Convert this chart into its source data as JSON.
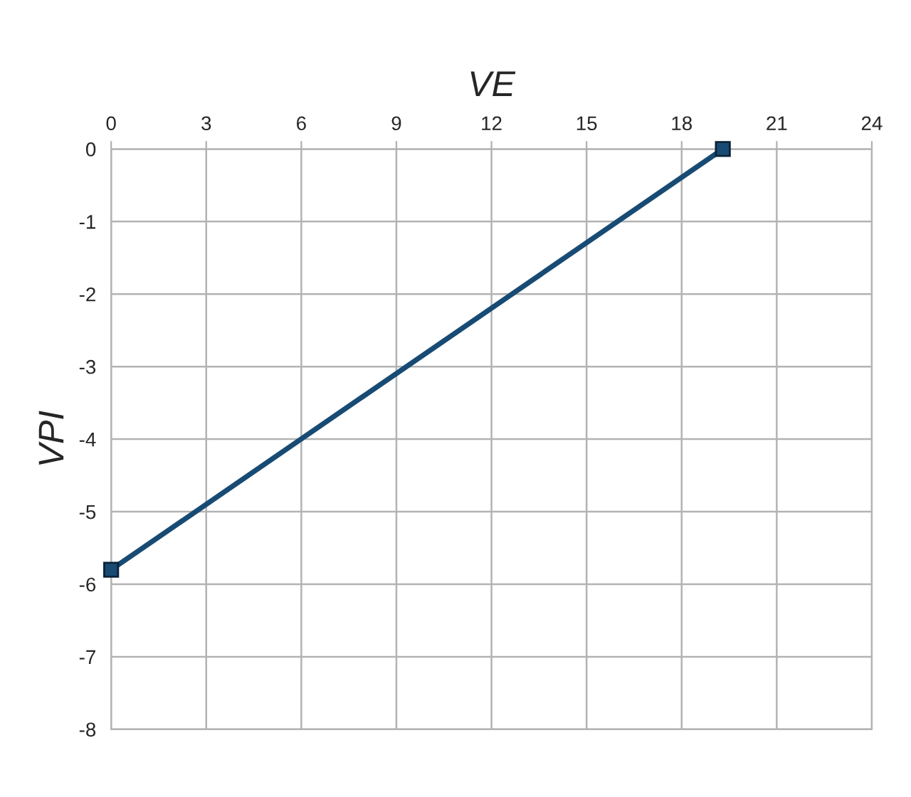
{
  "chart_data": {
    "type": "line",
    "xlabel": "VE",
    "ylabel": "VPI",
    "x": [
      0,
      19.3
    ],
    "series": [
      {
        "color": "#184b74",
        "values": [
          -5.8,
          0
        ]
      }
    ],
    "xlim": [
      0,
      24
    ],
    "xticks": [
      0,
      3,
      6,
      9,
      12,
      15,
      18,
      21,
      24
    ],
    "ylim": [
      -8,
      0
    ],
    "yticks": [
      -8,
      -7,
      -6,
      -5,
      -4,
      -3,
      -2,
      -1,
      0
    ],
    "grid": true,
    "marker": "square",
    "line_style": "solid"
  }
}
